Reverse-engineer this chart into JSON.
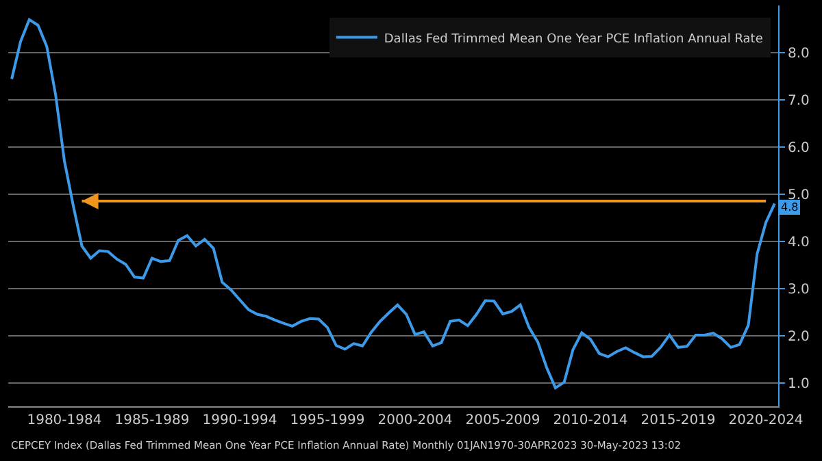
{
  "chart_data": {
    "type": "line",
    "categories": [
      null,
      null,
      null,
      null,
      null,
      null,
      "1980-1984",
      null,
      null,
      null,
      null,
      null,
      null,
      null,
      null,
      null,
      "1985-1989",
      null,
      null,
      null,
      null,
      null,
      null,
      null,
      null,
      null,
      "1990-1994",
      null,
      null,
      null,
      null,
      null,
      null,
      null,
      null,
      null,
      "1995-1999",
      null,
      null,
      null,
      null,
      null,
      null,
      null,
      null,
      null,
      "2000-2004",
      null,
      null,
      null,
      null,
      null,
      null,
      null,
      null,
      null,
      "2005-2009",
      null,
      null,
      null,
      null,
      null,
      null,
      null,
      null,
      null,
      "2010-2014",
      null,
      null,
      null,
      null,
      null,
      null,
      null,
      null,
      null,
      "2015-2019",
      null,
      null,
      null,
      null,
      null,
      null,
      null,
      null,
      null,
      "2020-2024",
      null
    ],
    "series": [
      {
        "name": "Dallas Fed Trimmed Mean One Year PCE Inflation Annual Rate",
        "color": "#3d9ae8",
        "values": [
          7.44,
          8.23,
          8.7,
          8.58,
          8.13,
          7.11,
          5.71,
          4.77,
          3.9,
          3.64,
          3.8,
          3.78,
          3.62,
          3.51,
          3.24,
          3.22,
          3.64,
          3.57,
          3.59,
          4.02,
          4.12,
          3.9,
          4.04,
          3.85,
          3.13,
          2.97,
          2.76,
          2.55,
          2.45,
          2.41,
          2.33,
          2.26,
          2.2,
          2.3,
          2.36,
          2.35,
          2.17,
          1.79,
          1.71,
          1.83,
          1.78,
          2.07,
          2.3,
          2.48,
          2.65,
          2.45,
          2.02,
          2.08,
          1.78,
          1.85,
          2.3,
          2.33,
          2.21,
          2.45,
          2.74,
          2.73,
          2.46,
          2.51,
          2.65,
          2.17,
          1.86,
          1.32,
          0.89,
          1.01,
          1.7,
          2.06,
          1.92,
          1.62,
          1.55,
          1.66,
          1.74,
          1.64,
          1.55,
          1.56,
          1.75,
          2.01,
          1.75,
          1.77,
          2.01,
          2.01,
          2.05,
          1.93,
          1.75,
          1.81,
          2.22,
          3.73,
          4.4,
          4.8
        ],
        "value_labels": [
          null,
          null,
          null,
          null,
          null,
          null,
          null,
          null,
          null,
          null,
          null,
          null,
          null,
          null,
          null,
          null,
          null,
          null,
          null,
          null,
          null,
          null,
          null,
          null,
          null,
          null,
          null,
          null,
          null,
          null,
          null,
          null,
          null,
          null,
          null,
          null,
          null,
          null,
          null,
          null,
          null,
          null,
          null,
          null,
          null,
          null,
          null,
          null,
          null,
          null,
          null,
          null,
          null,
          null,
          null,
          null,
          null,
          null,
          null,
          null,
          null,
          null,
          null,
          null,
          null,
          null,
          null,
          null,
          null,
          null,
          null,
          null,
          null,
          null,
          null,
          null,
          null,
          null,
          null,
          null,
          null,
          null,
          null,
          null,
          null,
          null,
          null,
          "4.8"
        ]
      },
      {
        "type": "line",
        "color": "#f0961e",
        "values": [
          null,
          null,
          null,
          null,
          null,
          null,
          null,
          null,
          4.85,
          4.85,
          4.85,
          4.85,
          4.85,
          4.85,
          4.85,
          4.85,
          4.85,
          4.85,
          4.85,
          4.85,
          4.85,
          4.85,
          4.85,
          4.85,
          4.85,
          4.85,
          4.85,
          4.85,
          4.85,
          4.85,
          4.85,
          4.85,
          4.85,
          4.85,
          4.85,
          4.85,
          4.85,
          4.85,
          4.85,
          4.85,
          4.85,
          4.85,
          4.85,
          4.85,
          4.85,
          4.85,
          4.85,
          4.85,
          4.85,
          4.85,
          4.85,
          4.85,
          4.85,
          4.85,
          4.85,
          4.85,
          4.85,
          4.85,
          4.85,
          4.85,
          4.85,
          4.85,
          4.85,
          4.85,
          4.85,
          4.85,
          4.85,
          4.85,
          4.85,
          4.85,
          4.85,
          4.85,
          4.85,
          4.85,
          4.85,
          4.85,
          4.85,
          4.85,
          4.85,
          4.85,
          4.85,
          4.85,
          4.85,
          4.85,
          4.85,
          4.85,
          4.85,
          null
        ]
      }
    ],
    "ylim": [
      0.5,
      9.0
    ],
    "yticks": [
      {
        "value": 1,
        "label": "1.0"
      },
      {
        "value": 2,
        "label": "2.0"
      },
      {
        "value": 3,
        "label": "3.0"
      },
      {
        "value": 4,
        "label": "4.0"
      },
      {
        "value": 5,
        "label": "5.0"
      },
      {
        "value": 6,
        "label": "6.0"
      },
      {
        "value": 7,
        "label": "7.0"
      },
      {
        "value": 8,
        "label": "8.0"
      }
    ],
    "grid": "y",
    "legend": "top right",
    "annotations": [
      "CEPCEY Index (Dallas Fed Trimmed Mean One Year PCE Inflation Annual Rate) Monthly 01JAN1970-30APR2023 30-May-2023 13:02"
    ]
  }
}
